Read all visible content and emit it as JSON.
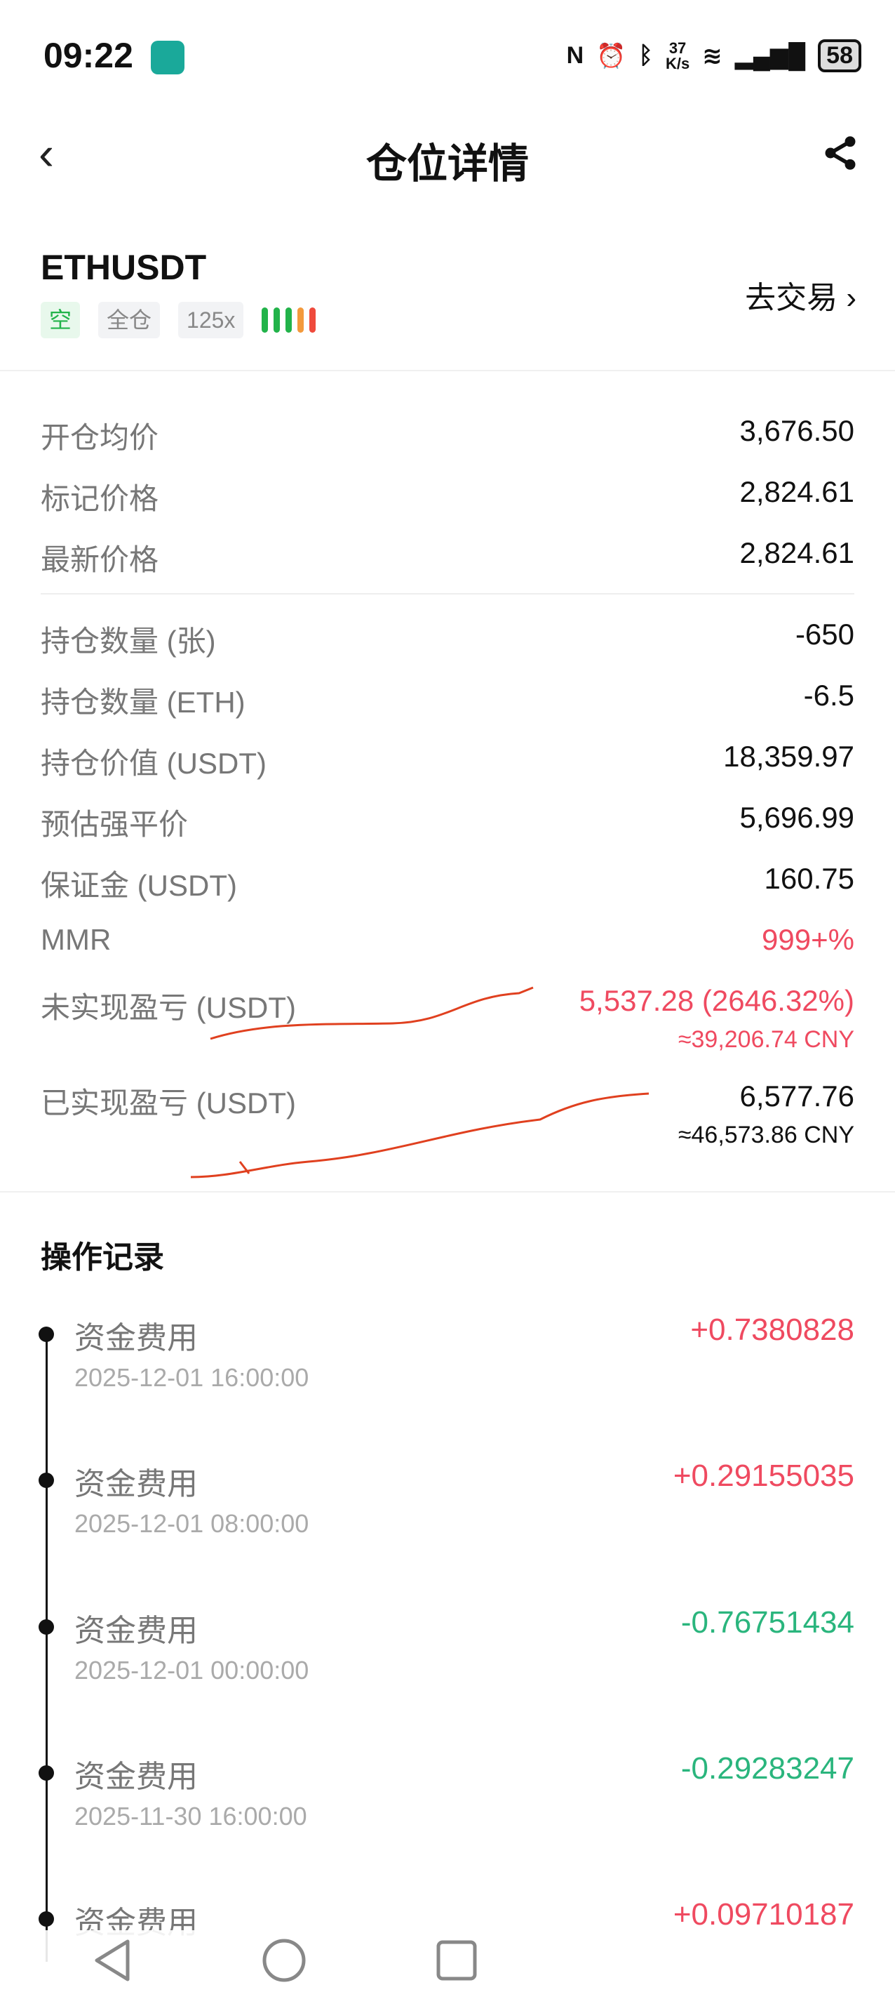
{
  "status_bar": {
    "time": "09:22",
    "net_speed_top": "37",
    "net_speed_bottom": "K/s",
    "battery": "58"
  },
  "header": {
    "title": "仓位详情"
  },
  "position": {
    "symbol": "ETHUSDT",
    "side_badge": "空",
    "margin_mode": "全仓",
    "leverage": "125x",
    "risk_bar_colors": [
      "#22b34a",
      "#22b34a",
      "#22b34a",
      "#f39a3c",
      "#ef4a3c"
    ],
    "trade_link": "去交易"
  },
  "price_rows": [
    {
      "label": "开仓均价",
      "value": "3,676.50"
    },
    {
      "label": "标记价格",
      "value": "2,824.61"
    },
    {
      "label": "最新价格",
      "value": "2,824.61"
    }
  ],
  "detail_rows": [
    {
      "label": "持仓数量 (张)",
      "value": "-650"
    },
    {
      "label": "持仓数量 (ETH)",
      "value": "-6.5"
    },
    {
      "label": "持仓价值 (USDT)",
      "value": "18,359.97"
    },
    {
      "label": "预估强平价",
      "value": "5,696.99"
    },
    {
      "label": "保证金 (USDT)",
      "value": "160.75"
    },
    {
      "label": "MMR",
      "value": "999+%"
    }
  ],
  "unrealized": {
    "label": "未实现盈亏 (USDT)",
    "value": "5,537.28 (2646.32%)",
    "cny": "≈39,206.74 CNY"
  },
  "realized": {
    "label": "已实现盈亏 (USDT)",
    "value": "6,577.76",
    "cny": "≈46,573.86 CNY"
  },
  "records_title": "操作记录",
  "records": [
    {
      "name": "资金费用",
      "time": "2025-12-01 16:00:00",
      "amount": "+0.7380828"
    },
    {
      "name": "资金费用",
      "time": "2025-12-01 08:00:00",
      "amount": "+0.29155035"
    },
    {
      "name": "资金费用",
      "time": "2025-12-01 00:00:00",
      "amount": "-0.76751434"
    },
    {
      "name": "资金费用",
      "time": "2025-11-30 16:00:00",
      "amount": "-0.29283247"
    },
    {
      "name": "资金费用",
      "time": "",
      "amount": "+0.09710187"
    }
  ],
  "colors": {
    "positive": "#ef4a60",
    "negative": "#2ab57d",
    "annotation": "#e0401f"
  }
}
